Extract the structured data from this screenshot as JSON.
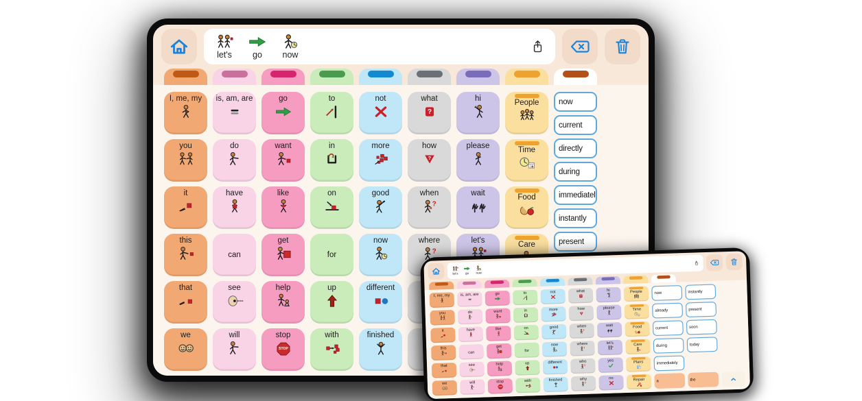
{
  "colors": {
    "icon_blue": "#1b82dd",
    "word_border_blue": "#5fa8dc",
    "screen_bg": "#f8e8da",
    "grid_bg": "#fcf5ee",
    "toolbar_button_bg": "#f2dcc9",
    "extra_word_orange": "#f8bd92",
    "folder_notch_orange": "#efa22f",
    "bezel": "#0b0b0b"
  },
  "toolbar": {
    "sentence": [
      {
        "word": "let's",
        "icon": "lets"
      },
      {
        "word": "go",
        "icon": "go"
      },
      {
        "word": "now",
        "icon": "now"
      }
    ],
    "icons": [
      "home-icon",
      "share-icon",
      "backspace-icon",
      "trash-icon"
    ]
  },
  "grid_columns": [
    {
      "bg": "#f2a873",
      "tab": "#bf5a16",
      "cells": [
        {
          "label": "I, me, my",
          "icon": "me"
        },
        {
          "label": "you",
          "icon": "you"
        },
        {
          "label": "it",
          "icon": "it"
        },
        {
          "label": "this",
          "icon": "this"
        },
        {
          "label": "that",
          "icon": "that"
        },
        {
          "label": "we",
          "icon": "we"
        }
      ]
    },
    {
      "bg": "#f9d3e6",
      "tab": "#c9719c",
      "cells": [
        {
          "label": "is, am, are",
          "icon": "is"
        },
        {
          "label": "do",
          "icon": "do"
        },
        {
          "label": "have",
          "icon": "have"
        },
        {
          "label": "can",
          "icon": null
        },
        {
          "label": "see",
          "icon": "see"
        },
        {
          "label": "will",
          "icon": "will"
        }
      ]
    },
    {
      "bg": "#f79cc1",
      "tab": "#d6256e",
      "cells": [
        {
          "label": "go",
          "icon": "go"
        },
        {
          "label": "want",
          "icon": "want"
        },
        {
          "label": "like",
          "icon": "like"
        },
        {
          "label": "get",
          "icon": "get"
        },
        {
          "label": "help",
          "icon": "help"
        },
        {
          "label": "stop",
          "icon": "stop"
        }
      ]
    },
    {
      "bg": "#c9ecba",
      "tab": "#4a9a4f",
      "cells": [
        {
          "label": "to",
          "icon": "to"
        },
        {
          "label": "in",
          "icon": "in"
        },
        {
          "label": "on",
          "icon": "on"
        },
        {
          "label": "for",
          "icon": null
        },
        {
          "label": "up",
          "icon": "up"
        },
        {
          "label": "with",
          "icon": "with"
        }
      ]
    },
    {
      "bg": "#bfe7f8",
      "tab": "#1389d2",
      "cells": [
        {
          "label": "not",
          "icon": "not"
        },
        {
          "label": "more",
          "icon": "more"
        },
        {
          "label": "good",
          "icon": "good"
        },
        {
          "label": "now",
          "icon": "now"
        },
        {
          "label": "different",
          "icon": "different"
        },
        {
          "label": "finished",
          "icon": "finished"
        }
      ]
    },
    {
      "bg": "#d9d9d9",
      "tab": "#6b7075",
      "cells": [
        {
          "label": "what",
          "icon": "what"
        },
        {
          "label": "how",
          "icon": "how"
        },
        {
          "label": "when",
          "icon": "when"
        },
        {
          "label": "where",
          "icon": "where"
        },
        {
          "label": "who",
          "icon": "who"
        },
        {
          "label": "why",
          "icon": "why"
        }
      ]
    },
    {
      "bg": "#cdc5e7",
      "tab": "#7b6cbb",
      "cells": [
        {
          "label": "hi",
          "icon": "hi"
        },
        {
          "label": "please",
          "icon": "please"
        },
        {
          "label": "wait",
          "icon": "wait"
        },
        {
          "label": "let's",
          "icon": "lets"
        },
        {
          "label": "yes",
          "icon": "yes"
        },
        {
          "label": "no",
          "icon": "no"
        }
      ]
    },
    {
      "bg": "#fbdf9f",
      "tab": "#efa22f",
      "cells": [
        {
          "label": "People",
          "icon": "people",
          "folder": true
        },
        {
          "label": "Time",
          "icon": "time",
          "folder": true
        },
        {
          "label": "Food",
          "icon": "food",
          "folder": true
        },
        {
          "label": "Care",
          "icon": "care",
          "folder": true
        },
        {
          "label": "Plans",
          "icon": "plans",
          "folder": true
        },
        {
          "label": "Repair",
          "icon": "repair",
          "folder": true
        }
      ]
    }
  ],
  "main_tablet": {
    "word_column": {
      "tab": "#b35018",
      "items": [
        "now",
        "current",
        "directly",
        "during",
        "immediately",
        "instantly",
        "present"
      ]
    }
  },
  "mini_tablet": {
    "word_columns": [
      {
        "tab": "#b35018",
        "items": [
          "now",
          "already",
          "current",
          "during",
          "immediately"
        ],
        "extra": "a"
      },
      {
        "items": [
          "instantly",
          "present",
          "soon",
          "today"
        ],
        "extra": "the"
      }
    ],
    "chevron": "chevron-up"
  }
}
